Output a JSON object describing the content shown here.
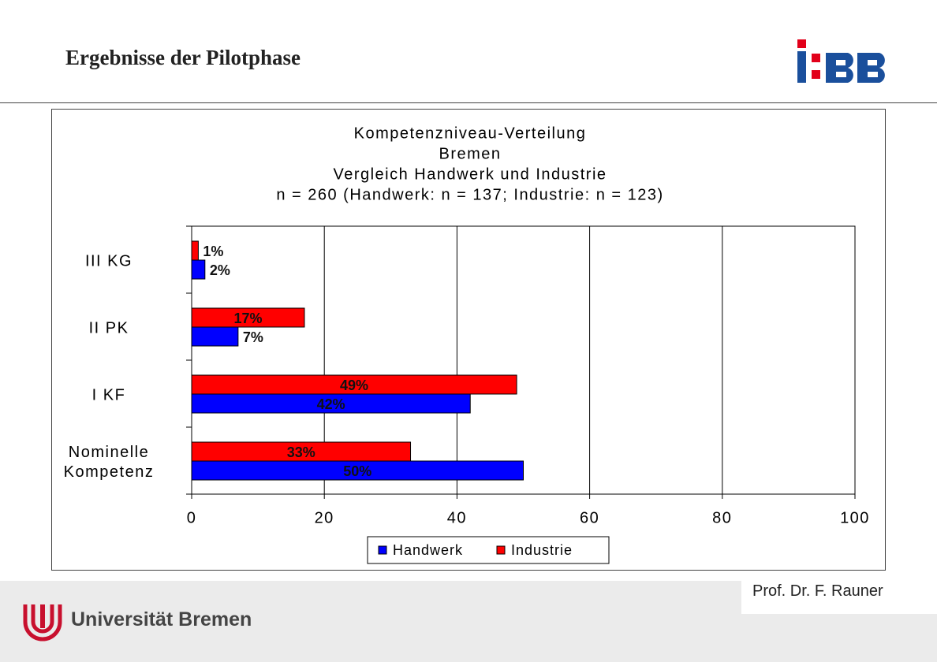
{
  "header": {
    "title": "Ergebnisse der Pilotphase"
  },
  "footer": {
    "author": "Prof. Dr. F. Rauner",
    "university": "Universität Bremen"
  },
  "chart_data": {
    "type": "bar",
    "orientation": "horizontal",
    "title": [
      "Kompetenzniveau-Verteilung",
      "Bremen",
      "Vergleich Handwerk und Industrie",
      "n =  260 (Handwerk: n = 137; Industrie: n = 123)"
    ],
    "categories": [
      "III KG",
      "II PK",
      "I KF",
      "Nominelle Kompetenz"
    ],
    "series": [
      {
        "name": "Handwerk",
        "color": "#0000ff",
        "values": [
          2,
          7,
          42,
          50
        ],
        "value_labels": [
          "2%",
          "7%",
          "42%",
          "50%"
        ]
      },
      {
        "name": "Industrie",
        "color": "#ff0000",
        "values": [
          1,
          17,
          49,
          33
        ],
        "value_labels": [
          "1%",
          "17%",
          "49%",
          "33%"
        ]
      }
    ],
    "xlim": [
      0,
      100
    ],
    "xticks": [
      0,
      20,
      40,
      60,
      80,
      100
    ],
    "grid": true
  }
}
